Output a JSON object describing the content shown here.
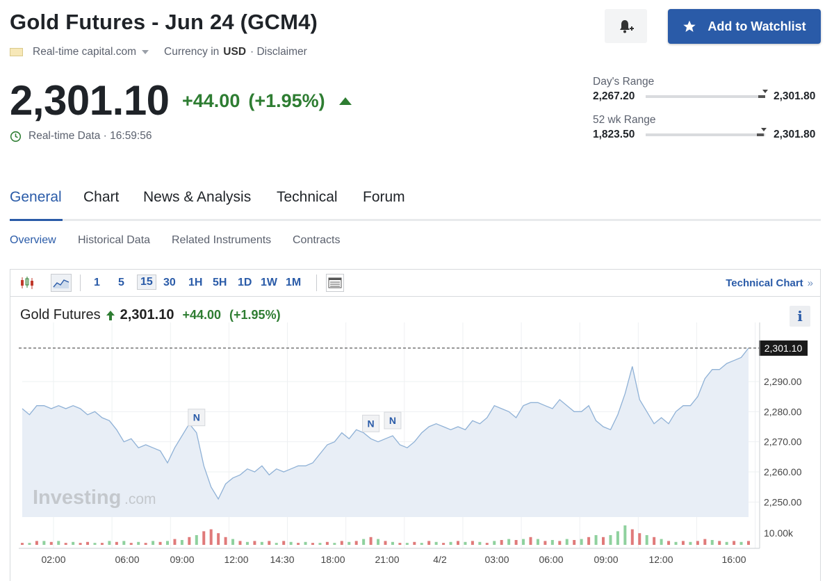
{
  "header": {
    "title": "Gold Futures - Jun 24 (GCM4)",
    "source": "Real-time capital.com",
    "currency_label": "Currency in",
    "currency": "USD",
    "disclaimer": "· Disclaimer",
    "watchlist_label": "Add to Watchlist"
  },
  "quote": {
    "price": "2,301.10",
    "change": "+44.00",
    "change_pct": "(+1.95%)",
    "realtime_text": "Real-time Data · 16:59:56"
  },
  "ranges": {
    "day": {
      "label": "Day's Range",
      "low": "2,267.20",
      "high": "2,301.80",
      "position": 1.0
    },
    "wk52": {
      "label": "52 wk Range",
      "low": "1,823.50",
      "high": "2,301.80",
      "position": 0.99
    }
  },
  "tabs": [
    "General",
    "Chart",
    "News & Analysis",
    "Technical",
    "Forum"
  ],
  "active_tab": "General",
  "subtabs": [
    "Overview",
    "Historical Data",
    "Related Instruments",
    "Contracts"
  ],
  "active_subtab": "Overview",
  "toolbar": {
    "periods": [
      "1",
      "5",
      "15",
      "30",
      "1H",
      "5H",
      "1D",
      "1W",
      "1M"
    ],
    "selected_period": "15",
    "technical_chart": "Technical Chart",
    "technical_chevron": "»"
  },
  "chart_header": {
    "name": "Gold Futures",
    "price": "2,301.10",
    "change": "+44.00",
    "change_pct": "(+1.95%)",
    "info_icon": "i"
  },
  "colors": {
    "accent": "#2a5ba8",
    "up": "#2e7d32",
    "line": "#8fb1d6",
    "area": "#e8eef6",
    "vol_up": "#8fd19e",
    "vol_down": "#e07a7a"
  },
  "icons": {
    "bell": "bell-plus-icon",
    "star": "star-icon",
    "clock": "clock-icon",
    "candles": "candlestick-icon",
    "area": "area-chart-icon",
    "table": "table-view-icon",
    "up_arrow": "up-arrow-icon"
  },
  "chart_data": {
    "type": "area",
    "title": "",
    "xlabel": "",
    "ylabel": "",
    "ylim": [
      2245,
      2305
    ],
    "x_ticks": [
      "02:00",
      "06:00",
      "09:00",
      "12:00",
      "14:30",
      "18:00",
      "21:00",
      "4/2",
      "03:00",
      "06:00",
      "09:00",
      "12:00",
      "16:00"
    ],
    "y_ticks": [
      2250,
      2260,
      2270,
      2280,
      2290
    ],
    "y_tick_labels": [
      "2,250.00",
      "2,260.00",
      "2,270.00",
      "2,280.00",
      "2,290.00"
    ],
    "last_price": 2301.1,
    "last_price_label": "2,301.10",
    "volume_label": "10.00k",
    "watermark": "Investing",
    "watermark_suffix": ".com",
    "news_marker_label": "N",
    "news_markers": [
      {
        "x_index": 24,
        "label": "N"
      },
      {
        "x_index": 48,
        "label": "N"
      },
      {
        "x_index": 51,
        "label": "N"
      }
    ],
    "series": [
      {
        "values": [
          2281,
          2279,
          2282,
          2282,
          2281,
          2282,
          2281,
          2282,
          2281,
          2279,
          2280,
          2278,
          2277,
          2274,
          2270,
          2271,
          2268,
          2269,
          2268,
          2267,
          2263,
          2268,
          2272,
          2276,
          2273,
          2262,
          2255,
          2251,
          2256,
          2258,
          2259,
          2261,
          2260,
          2262,
          2259,
          2261,
          2260,
          2261,
          2262,
          2262,
          2263,
          2266,
          2269,
          2270,
          2273,
          2271,
          2274,
          2273,
          2271,
          2270,
          2271,
          2272,
          2269,
          2268,
          2270,
          2273,
          2275,
          2276,
          2275,
          2274,
          2275,
          2274,
          2277,
          2276,
          2278,
          2282,
          2281,
          2280,
          2278,
          2282,
          2283,
          2283,
          2282,
          2281,
          2284,
          2282,
          2280,
          2280,
          2282,
          2277,
          2275,
          2274,
          2279,
          2286,
          2295,
          2284,
          2280,
          2276,
          2278,
          2276,
          2280,
          2282,
          2282,
          2285,
          2291,
          2294,
          2294,
          2296,
          2297,
          2298,
          2301.1
        ]
      }
    ],
    "volume": [
      [
        0.1,
        0
      ],
      [
        0.1,
        1
      ],
      [
        0.2,
        0
      ],
      [
        0.2,
        1
      ],
      [
        0.15,
        0
      ],
      [
        0.2,
        1
      ],
      [
        0.1,
        0
      ],
      [
        0.15,
        1
      ],
      [
        0.1,
        0
      ],
      [
        0.15,
        0
      ],
      [
        0.1,
        1
      ],
      [
        0.1,
        0
      ],
      [
        0.2,
        1
      ],
      [
        0.15,
        0
      ],
      [
        0.2,
        1
      ],
      [
        0.1,
        0
      ],
      [
        0.15,
        1
      ],
      [
        0.1,
        0
      ],
      [
        0.2,
        1
      ],
      [
        0.15,
        0
      ],
      [
        0.2,
        1
      ],
      [
        0.3,
        0
      ],
      [
        0.25,
        1
      ],
      [
        0.4,
        0
      ],
      [
        0.5,
        1
      ],
      [
        0.7,
        0
      ],
      [
        0.8,
        0
      ],
      [
        0.6,
        0
      ],
      [
        0.4,
        0
      ],
      [
        0.3,
        1
      ],
      [
        0.2,
        0
      ],
      [
        0.15,
        1
      ],
      [
        0.2,
        0
      ],
      [
        0.15,
        1
      ],
      [
        0.2,
        0
      ],
      [
        0.1,
        1
      ],
      [
        0.2,
        0
      ],
      [
        0.15,
        1
      ],
      [
        0.1,
        0
      ],
      [
        0.15,
        1
      ],
      [
        0.1,
        0
      ],
      [
        0.1,
        1
      ],
      [
        0.15,
        0
      ],
      [
        0.1,
        1
      ],
      [
        0.2,
        0
      ],
      [
        0.15,
        1
      ],
      [
        0.2,
        0
      ],
      [
        0.3,
        1
      ],
      [
        0.4,
        0
      ],
      [
        0.3,
        1
      ],
      [
        0.2,
        0
      ],
      [
        0.15,
        1
      ],
      [
        0.1,
        0
      ],
      [
        0.1,
        1
      ],
      [
        0.15,
        0
      ],
      [
        0.1,
        1
      ],
      [
        0.2,
        0
      ],
      [
        0.15,
        1
      ],
      [
        0.1,
        0
      ],
      [
        0.15,
        1
      ],
      [
        0.2,
        0
      ],
      [
        0.15,
        1
      ],
      [
        0.2,
        0
      ],
      [
        0.15,
        1
      ],
      [
        0.1,
        0
      ],
      [
        0.2,
        1
      ],
      [
        0.25,
        0
      ],
      [
        0.3,
        1
      ],
      [
        0.25,
        0
      ],
      [
        0.3,
        1
      ],
      [
        0.4,
        0
      ],
      [
        0.3,
        1
      ],
      [
        0.2,
        0
      ],
      [
        0.25,
        1
      ],
      [
        0.2,
        0
      ],
      [
        0.3,
        1
      ],
      [
        0.25,
        0
      ],
      [
        0.3,
        1
      ],
      [
        0.4,
        0
      ],
      [
        0.5,
        1
      ],
      [
        0.4,
        0
      ],
      [
        0.5,
        1
      ],
      [
        0.7,
        1
      ],
      [
        1.0,
        1
      ],
      [
        0.8,
        0
      ],
      [
        0.6,
        0
      ],
      [
        0.5,
        1
      ],
      [
        0.4,
        0
      ],
      [
        0.3,
        1
      ],
      [
        0.2,
        0
      ],
      [
        0.15,
        1
      ],
      [
        0.2,
        0
      ],
      [
        0.15,
        1
      ],
      [
        0.2,
        0
      ],
      [
        0.3,
        0
      ],
      [
        0.25,
        1
      ],
      [
        0.2,
        0
      ],
      [
        0.15,
        1
      ],
      [
        0.2,
        0
      ],
      [
        0.15,
        1
      ],
      [
        0.2,
        0
      ]
    ]
  }
}
